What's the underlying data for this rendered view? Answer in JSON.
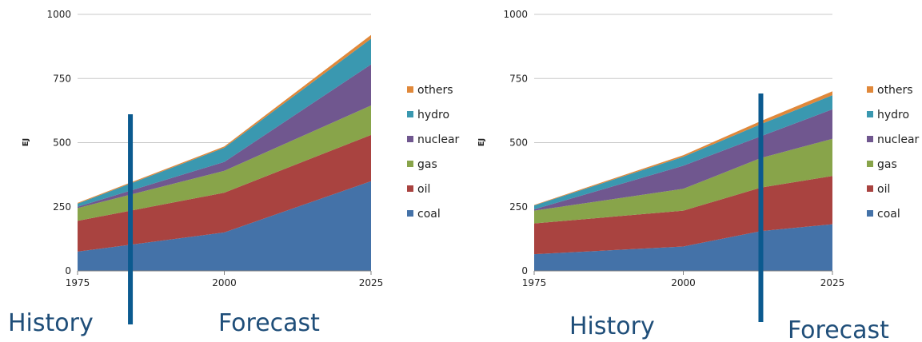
{
  "colors": {
    "coal": "#4472a8",
    "oil": "#a94340",
    "gas": "#88a44a",
    "nuclear": "#70578f",
    "hydro": "#3a98b0",
    "others": "#e0883a",
    "divider": "#0b5a8f",
    "annotation": "#1f4e79",
    "grid": "#c8c8c8"
  },
  "chart_data": [
    {
      "type": "area",
      "stacked": true,
      "x": [
        1975,
        2000,
        2025
      ],
      "ylabel": "EJ",
      "ylim": [
        0,
        1000
      ],
      "yticks": [
        "0",
        "250",
        "500",
        "750",
        "1000"
      ],
      "xticks": [
        "1975",
        "2000",
        "2025"
      ],
      "grid": true,
      "legend": "right",
      "series": [
        {
          "name": "coal",
          "values": [
            75,
            150,
            350
          ]
        },
        {
          "name": "oil",
          "values": [
            120,
            155,
            180
          ]
        },
        {
          "name": "gas",
          "values": [
            50,
            85,
            115
          ]
        },
        {
          "name": "nuclear",
          "values": [
            5,
            35,
            160
          ]
        },
        {
          "name": "hydro",
          "values": [
            12,
            55,
            100
          ]
        },
        {
          "name": "others",
          "values": [
            3,
            5,
            15
          ]
        }
      ],
      "divider_x": 1984,
      "annotations": {
        "left": "History",
        "right": "Forecast"
      }
    },
    {
      "type": "area",
      "stacked": true,
      "x": [
        1975,
        2000,
        2013,
        2025
      ],
      "ylabel": "EJ",
      "ylim": [
        0,
        1000
      ],
      "yticks": [
        "0",
        "250",
        "500",
        "750",
        "1000"
      ],
      "xticks": [
        "1975",
        "2000",
        "2025"
      ],
      "grid": true,
      "legend": "right",
      "series": [
        {
          "name": "coal",
          "values": [
            65,
            95,
            155,
            182
          ]
        },
        {
          "name": "oil",
          "values": [
            120,
            140,
            170,
            188
          ]
        },
        {
          "name": "gas",
          "values": [
            50,
            85,
            115,
            145
          ]
        },
        {
          "name": "nuclear",
          "values": [
            5,
            90,
            85,
            115
          ]
        },
        {
          "name": "hydro",
          "values": [
            15,
            35,
            47,
            55
          ]
        },
        {
          "name": "others",
          "values": [
            2,
            6,
            12,
            15
          ]
        }
      ],
      "divider_x": 2013,
      "annotations": {
        "left": "History",
        "right": "Forecast"
      }
    }
  ]
}
